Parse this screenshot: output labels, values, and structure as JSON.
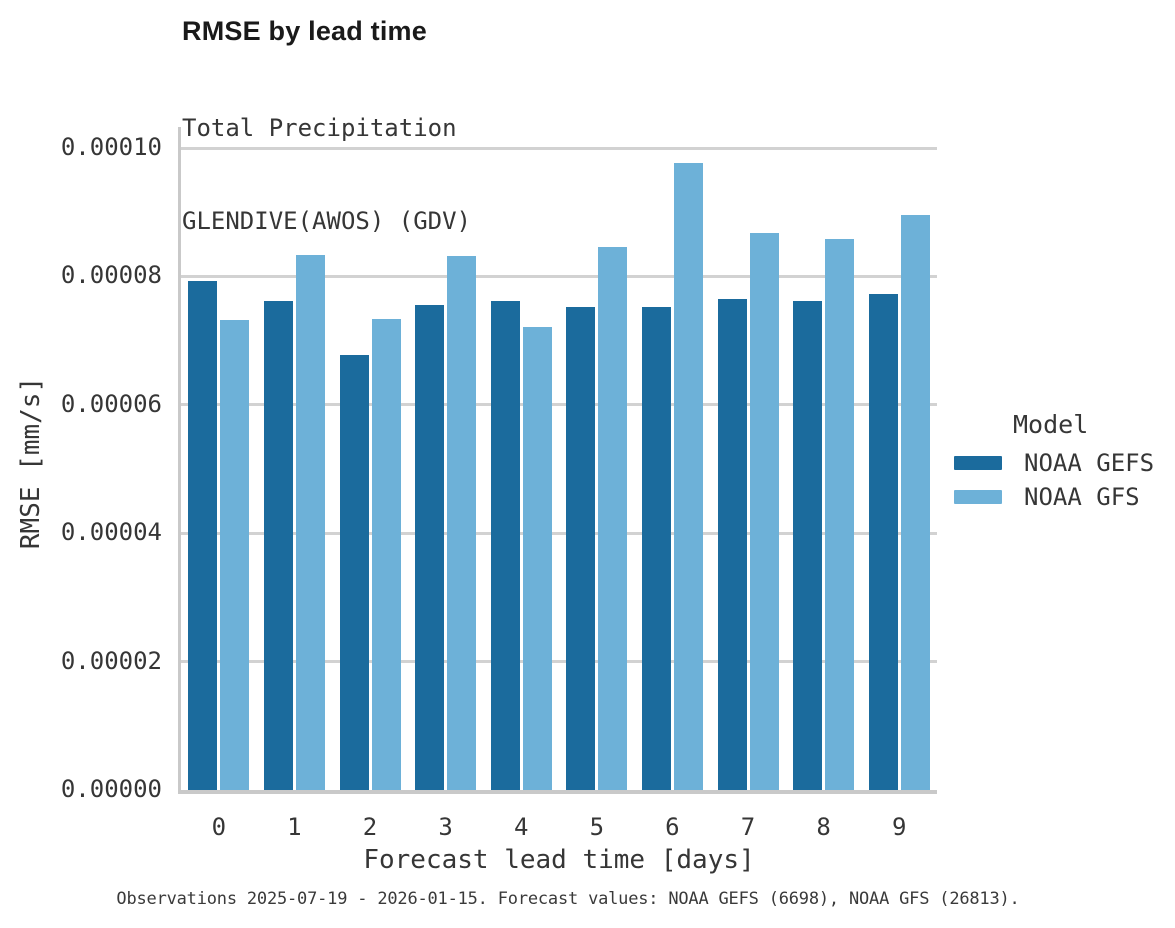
{
  "chart_data": {
    "type": "bar",
    "title": "RMSE by lead time",
    "subtitle_lines": [
      "Total Precipitation",
      "GLENDIVE(AWOS) (GDV)"
    ],
    "xlabel": "Forecast lead time [days]",
    "ylabel": "RMSE [mm/s]",
    "categories": [
      "0",
      "1",
      "2",
      "3",
      "4",
      "5",
      "6",
      "7",
      "8",
      "9"
    ],
    "series": [
      {
        "name": "NOAA GEFS",
        "color": "#1b6b9d",
        "values": [
          7.93e-05,
          7.61e-05,
          6.78e-05,
          7.56e-05,
          7.62e-05,
          7.53e-05,
          7.53e-05,
          7.65e-05,
          7.62e-05,
          7.73e-05
        ]
      },
      {
        "name": "NOAA GFS",
        "color": "#6db1d8",
        "values": [
          7.32e-05,
          8.34e-05,
          7.34e-05,
          8.32e-05,
          7.21e-05,
          8.46e-05,
          9.76e-05,
          8.68e-05,
          8.59e-05,
          8.95e-05
        ]
      }
    ],
    "ylim": [
      0,
      0.0001
    ],
    "yticks": {
      "values": [
        0,
        2e-05,
        4e-05,
        6e-05,
        8e-05,
        0.0001
      ],
      "labels": [
        "0.00000",
        "0.00002",
        "0.00004",
        "0.00006",
        "0.00008",
        "0.00010"
      ]
    },
    "grid": "horizontal-only",
    "legend": {
      "title": "Model",
      "position": "right"
    }
  },
  "footer": {
    "text": "Observations 2025-07-19 - 2026-01-15. Forecast values: NOAA GEFS (6698), NOAA GFS (26813)."
  },
  "colors": {
    "axis": "#c9c9c9",
    "gridline": "#d2d2d2",
    "title_text": "#1a1a1a",
    "body_text": "#363636",
    "background": "#ffffff"
  }
}
